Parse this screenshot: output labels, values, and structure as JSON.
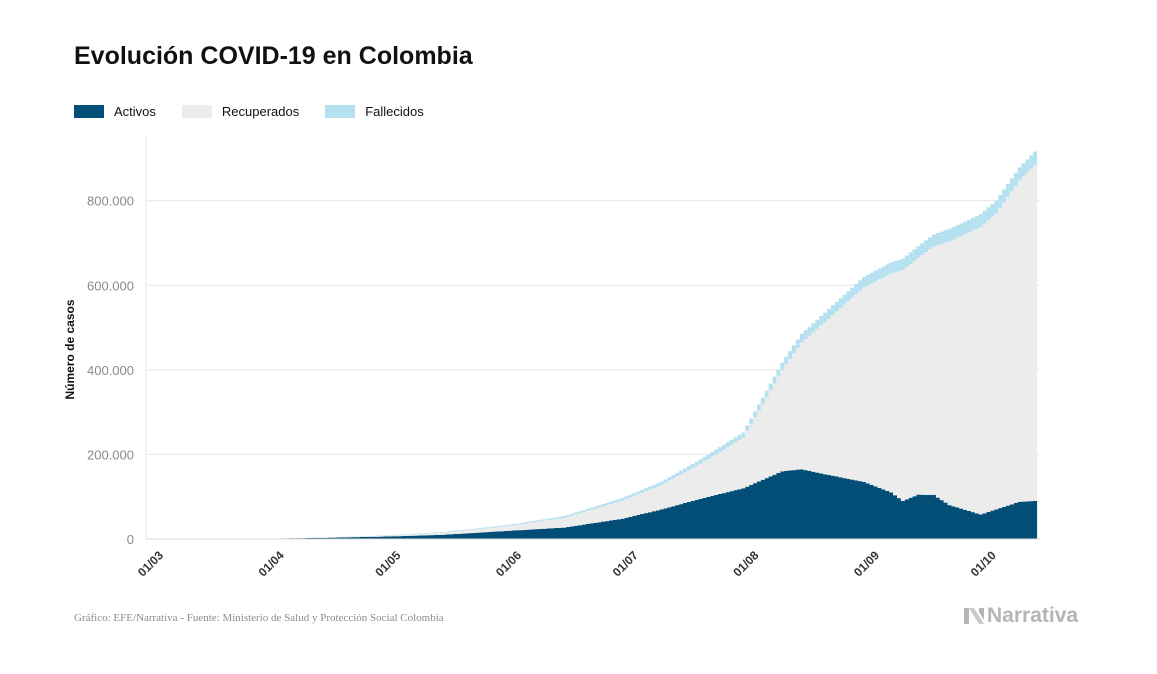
{
  "title": "Evolución COVID-19 en Colombia",
  "legend": [
    {
      "label": "Activos",
      "color": "#034e77"
    },
    {
      "label": "Recuperados",
      "color": "#ececec"
    },
    {
      "label": "Fallecidos",
      "color": "#b5e1f0"
    }
  ],
  "source": "Gráfico: EFE/Narrativa - Fuente: Ministerio de Salud y Protección Social Colombia",
  "brand": "Narrativa",
  "chart_data": {
    "type": "area",
    "stacked": true,
    "title": "Evolución COVID-19 en Colombia",
    "xlabel": "",
    "ylabel": "Número de casos",
    "ylim": [
      0,
      920000
    ],
    "yticks": [
      0,
      200000,
      400000,
      600000,
      800000
    ],
    "ytick_labels": [
      "0",
      "200.000",
      "400.000",
      "600.000",
      "800.000"
    ],
    "xlim": [
      0,
      230
    ],
    "xticks": [
      0,
      31,
      61,
      92,
      122,
      153,
      184,
      214
    ],
    "xtick_labels": [
      "01/03",
      "01/04",
      "01/05",
      "01/06",
      "01/07",
      "01/08",
      "01/09",
      "01/10"
    ],
    "x_days_since_0103": [
      0,
      31,
      45,
      61,
      76,
      92,
      107,
      122,
      132,
      142,
      153,
      163,
      168,
      173,
      184,
      191,
      194,
      198,
      202,
      206,
      214,
      218,
      224,
      228
    ],
    "series": [
      {
        "name": "Activos",
        "color": "#034e77",
        "values": [
          0,
          800,
          2800,
          5800,
          10000,
          19000,
          27000,
          48000,
          70000,
          95000,
          120000,
          160000,
          165000,
          155000,
          135000,
          110000,
          90000,
          105000,
          104000,
          80000,
          58000,
          70000,
          88000,
          90000
        ]
      },
      {
        "name": "Recuperados",
        "color": "#ececec",
        "values": [
          0,
          50,
          300,
          1800,
          5000,
          11000,
          23000,
          43000,
          58000,
          83000,
          120000,
          240000,
          300000,
          350000,
          460000,
          518000,
          546000,
          560000,
          588000,
          624000,
          680000,
          700000,
          760000,
          795000
        ]
      },
      {
        "name": "Fallecidos",
        "color": "#b5e1f0",
        "values": [
          0,
          20,
          200,
          900,
          1500,
          2500,
          4000,
          6000,
          7500,
          10000,
          12000,
          17000,
          20000,
          22000,
          25000,
          26000,
          27000,
          27500,
          28500,
          29500,
          30000,
          30500,
          31000,
          31500
        ]
      }
    ]
  }
}
